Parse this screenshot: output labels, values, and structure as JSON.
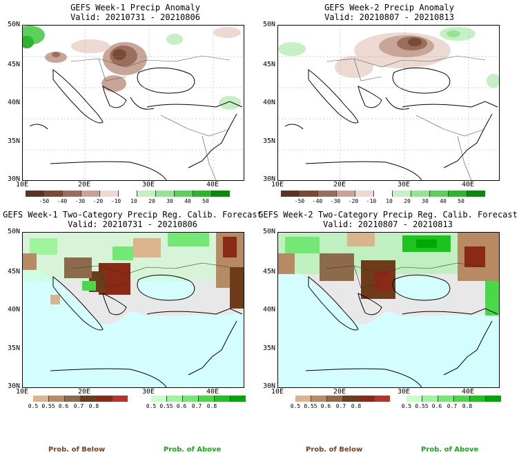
{
  "panels": [
    {
      "title1": "GEFS Week-1 Precip Anomaly",
      "title2": "Valid: 20210731 - 20210806"
    },
    {
      "title1": "GEFS Week-2 Precip Anomaly",
      "title2": "Valid: 20210807 - 20210813"
    },
    {
      "title1": "GEFS Week-1 Two-Category Precip Reg. Calib. Forecast",
      "title2": "Valid: 20210731 - 20210806"
    },
    {
      "title1": "GEFS Week-2 Two-Category Precip Reg. Calib. Forecast",
      "title2": "Valid: 20210807 - 20210813"
    }
  ],
  "axes": {
    "lat_labels": [
      "50N",
      "45N",
      "40N",
      "35N",
      "30N"
    ],
    "lon_labels": [
      "10E",
      "20E",
      "30E",
      "40E"
    ]
  },
  "anomaly_colorbar": {
    "labels": [
      "-50",
      "-40",
      "-30",
      "-20",
      "-10",
      "10",
      "20",
      "30",
      "40",
      "50"
    ],
    "colors": [
      "#5a3322",
      "#7a4a35",
      "#9a6e5c",
      "#c9a598",
      "#ecdad2",
      "#ffffff",
      "#c4f0c4",
      "#93e593",
      "#5ccf5c",
      "#2eb42e",
      "#0a8a0a"
    ]
  },
  "prob_below_colorbar": {
    "labels": [
      "0.5",
      "0.55",
      "0.6",
      "0.7",
      "0.8"
    ],
    "colors": [
      "#d9b48c",
      "#b88a62",
      "#8e6a4c",
      "#6e3c1a",
      "#8a2a14",
      "#b8342a"
    ]
  },
  "prob_above_colorbar": {
    "labels": [
      "0.5",
      "0.55",
      "0.6",
      "0.7",
      "0.8"
    ],
    "colors": [
      "#c8ffc8",
      "#9ef59e",
      "#74e874",
      "#48d848",
      "#1ec41e",
      "#00a800"
    ]
  },
  "colors": {
    "ocean": "#d4fdfd",
    "land_missing": "#e8e8e8",
    "prob_below_text": "#7a4020",
    "prob_above_text": "#1aa61a"
  },
  "legend": {
    "below_left": "Prob. of Below",
    "above_left": "Prob. of Above",
    "below_right": "Prob. of Below",
    "above_right": "Prob. of Above"
  }
}
